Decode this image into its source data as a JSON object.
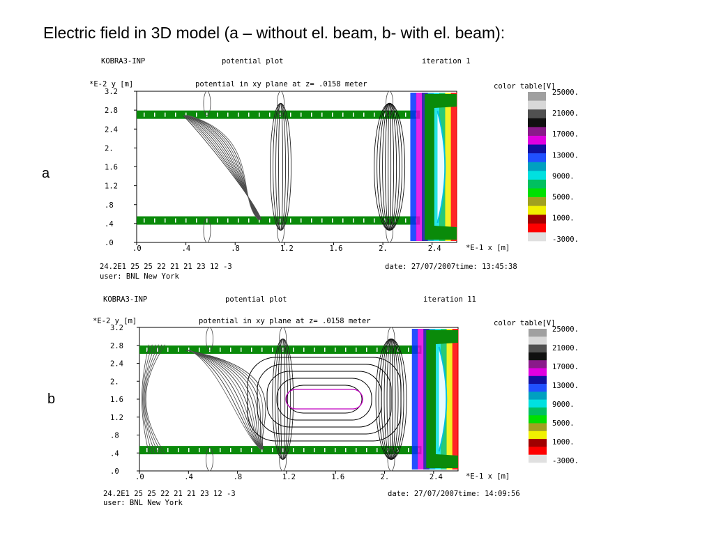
{
  "slide": {
    "title": "Electric field in 3D model (a – without el. beam, b- with el. beam):"
  },
  "panels": [
    {
      "label": "a",
      "program": "KOBRA3-INP",
      "plot_name": "potential plot",
      "iteration": "iteration  1",
      "y_axis_label": "*E-2  y [m]",
      "subtitle": "potential in xy plane  at z= .0158  meter",
      "color_table_label": "color table[V]",
      "y_ticks": [
        "3.2",
        "2.8",
        "2.4",
        "2.",
        "1.6",
        "1.2",
        ".8",
        ".4",
        ".0"
      ],
      "x_ticks": [
        ".0",
        ".4",
        ".8",
        "1.2",
        "1.6",
        "2.",
        "2.4"
      ],
      "x_axis_label": "*E-1  x [m]",
      "color_table_values": [
        "25000.",
        "21000.",
        "17000.",
        "13000.",
        "9000.",
        "5000.",
        "1000.",
        "-3000."
      ],
      "footer_values": "24.2E1 25 25 22 21 21 23 12 -3",
      "footer_user": "user: BNL New York",
      "footer_date": "date: 27/07/2007time: 13:45:38",
      "beam": false
    },
    {
      "label": "b",
      "program": "KOBRA3-INP",
      "plot_name": "potential plot",
      "iteration": "iteration 11",
      "y_axis_label": "*E-2  y [m]",
      "subtitle": "potential in xy plane  at z= .0158  meter",
      "color_table_label": "color table[V]",
      "y_ticks": [
        "3.2",
        "2.8",
        "2.4",
        "2.",
        "1.6",
        "1.2",
        ".8",
        ".4",
        ".0"
      ],
      "x_ticks": [
        ".0",
        ".4",
        ".8",
        "1.2",
        "1.6",
        "2.",
        "2.4"
      ],
      "x_axis_label": "*E-1  x [m]",
      "color_table_values": [
        "25000.",
        "21000.",
        "17000.",
        "13000.",
        "9000.",
        "5000.",
        "1000.",
        "-3000."
      ],
      "footer_values": "24.2E1 25 25 22 21 21 23 12 -3",
      "footer_user": "user: BNL New York",
      "footer_date": "date: 27/07/2007time: 14:09:56",
      "beam": true
    }
  ],
  "colors": {
    "electrode_green": "#0a8a0a",
    "color_table": [
      "#a0a0a0",
      "#d8d8d8",
      "#505050",
      "#101010",
      "#8a1a8a",
      "#e000e0",
      "#1010a0",
      "#2050ff",
      "#00a0c0",
      "#00e0e0",
      "#00c060",
      "#00e000",
      "#a0a020",
      "#f0f000",
      "#a00000",
      "#ff0000",
      "#e0e0e0"
    ]
  }
}
